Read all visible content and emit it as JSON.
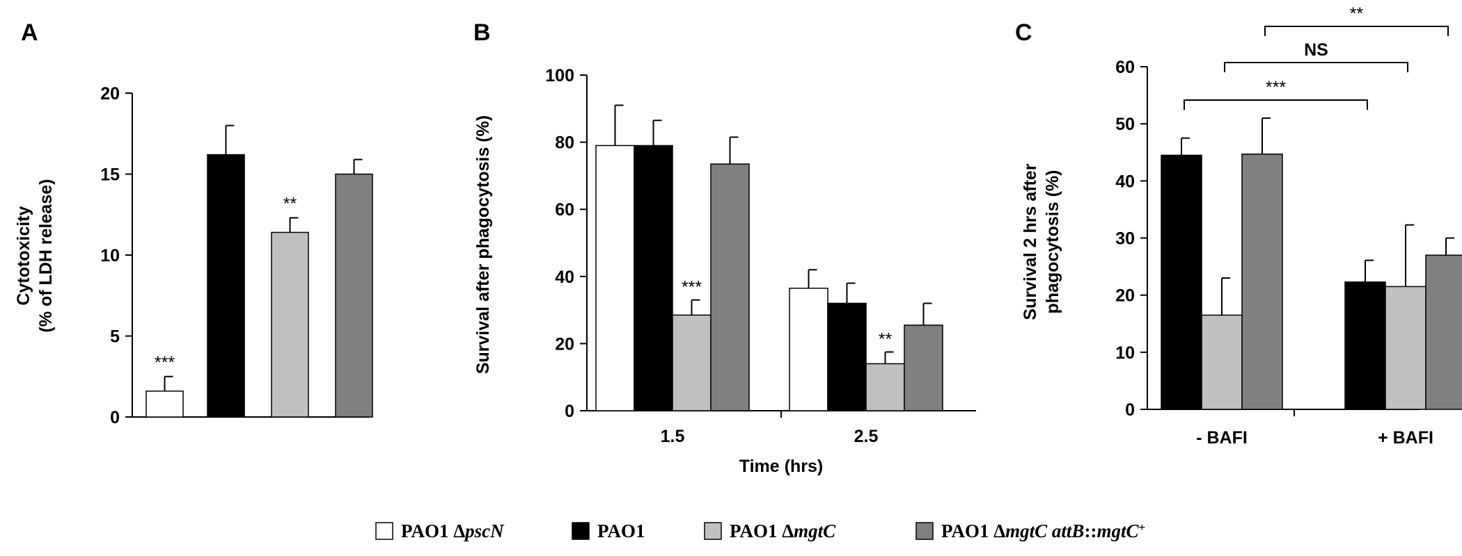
{
  "colors": {
    "white_series": "#ffffff",
    "black_series": "#000000",
    "light_gray_series": "#c0c0c0",
    "dark_gray_series": "#808080",
    "axis": "#000000"
  },
  "legend": {
    "items": [
      {
        "prefix": "PAO1 Δ",
        "italic": "pscN",
        "suffix": "",
        "color": "#ffffff"
      },
      {
        "prefix": "PAO1",
        "italic": "",
        "suffix": "",
        "color": "#000000"
      },
      {
        "prefix": "PAO1 Δ",
        "italic": "mgtC",
        "suffix": "",
        "color": "#c0c0c0"
      },
      {
        "prefix": "PAO1 Δ",
        "italic": "mgtC attB",
        "suffix": "::",
        "italic2": "mgtC",
        "sup": "+",
        "color": "#808080"
      }
    ]
  },
  "chart_data": [
    {
      "panel": "A",
      "type": "bar",
      "ylabel": [
        "Cytotoxicity",
        "(% of LDH release)"
      ],
      "ylim": [
        0,
        20
      ],
      "yticks": [
        "0",
        "5",
        "10",
        "15",
        "20"
      ],
      "categories": [
        "PAO1 ΔpscN",
        "PAO1",
        "PAO1 ΔmgtC",
        "PAO1 ΔmgtC attB::mgtC+"
      ],
      "values": [
        1.6,
        16.2,
        11.4,
        15.0
      ],
      "errors": [
        0.9,
        1.8,
        0.9,
        0.9
      ],
      "colors": [
        "#ffffff",
        "#000000",
        "#c0c0c0",
        "#808080"
      ],
      "annotations": [
        "***",
        "",
        "**",
        ""
      ]
    },
    {
      "panel": "B",
      "type": "bar",
      "xlabel": "Time (hrs)",
      "ylabel": [
        "Survival after phagocytosis (%)"
      ],
      "ylim": [
        0,
        100
      ],
      "yticks": [
        "0",
        "20",
        "40",
        "60",
        "80",
        "100"
      ],
      "categories": [
        "1.5",
        "2.5"
      ],
      "series": [
        {
          "values": [
            79,
            36.5
          ],
          "errors": [
            12,
            5.5
          ],
          "color": "#ffffff",
          "annotations": [
            "",
            ""
          ]
        },
        {
          "values": [
            79,
            32
          ],
          "errors": [
            7.5,
            6
          ],
          "color": "#000000",
          "annotations": [
            "",
            ""
          ]
        },
        {
          "values": [
            28.5,
            14
          ],
          "errors": [
            4.5,
            3.5
          ],
          "color": "#c0c0c0",
          "annotations": [
            "***",
            "**"
          ]
        },
        {
          "values": [
            73.5,
            25.5
          ],
          "errors": [
            8,
            6.5
          ],
          "color": "#808080",
          "annotations": [
            "",
            ""
          ]
        }
      ]
    },
    {
      "panel": "C",
      "type": "bar",
      "ylabel": [
        "Survival 2 hrs after",
        "phagocytosis (%)"
      ],
      "ylim": [
        0,
        60
      ],
      "yticks": [
        "0",
        "10",
        "20",
        "30",
        "40",
        "50",
        "60"
      ],
      "categories": [
        "- BAFI",
        "+ BAFI"
      ],
      "series": [
        {
          "values": [
            44.5,
            22.3
          ],
          "errors": [
            3,
            3.8
          ],
          "color": "#000000"
        },
        {
          "values": [
            16.5,
            21.5
          ],
          "errors": [
            6.5,
            10.8
          ],
          "color": "#c0c0c0"
        },
        {
          "values": [
            44.7,
            27
          ],
          "errors": [
            6.3,
            3
          ],
          "color": "#808080"
        }
      ],
      "brackets": [
        {
          "series": 0,
          "label": "***"
        },
        {
          "series": 1,
          "label": "NS"
        },
        {
          "series": 2,
          "label": "**"
        }
      ]
    }
  ]
}
